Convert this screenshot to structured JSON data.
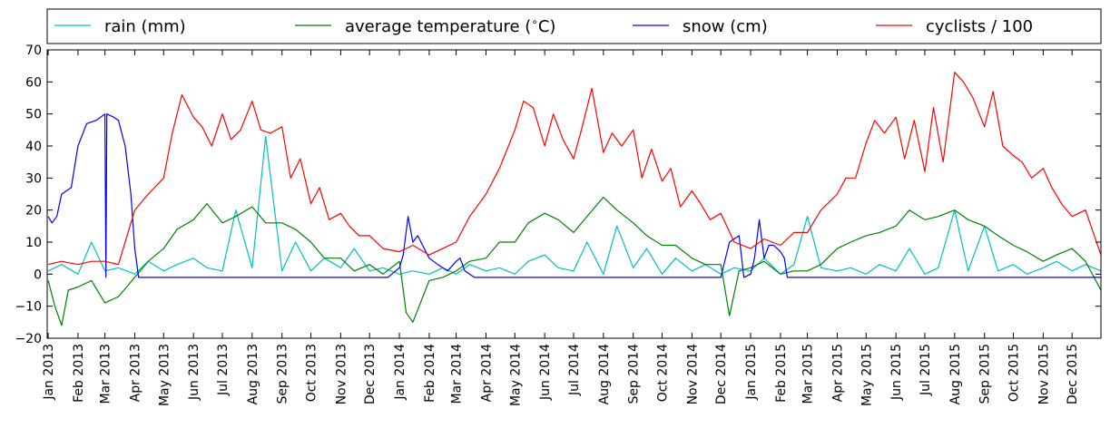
{
  "chart_data": {
    "type": "line",
    "title": "",
    "xlabel": "",
    "ylabel": "",
    "ylim": [
      -20,
      70
    ],
    "yticks": [
      -20,
      -10,
      0,
      10,
      20,
      30,
      40,
      50,
      60,
      70
    ],
    "xlim": [
      "2012-12-31",
      "2015-12-31"
    ],
    "grid": false,
    "legend_location": "top, above plot, single row",
    "x_tick_labels": [
      "Jan 2013",
      "Feb 2013",
      "Mar 2013",
      "Apr 2013",
      "May 2013",
      "Jun 2013",
      "Jul 2013",
      "Aug 2013",
      "Sep 2013",
      "Oct 2013",
      "Nov 2013",
      "Dec 2013",
      "Jan 2014",
      "Feb 2014",
      "Mar 2014",
      "Apr 2014",
      "May 2014",
      "Jun 2014",
      "Jul 2014",
      "Aug 2014",
      "Sep 2014",
      "Oct 2014",
      "Nov 2014",
      "Dec 2014",
      "Jan 2015",
      "Feb 2015",
      "Mar 2015",
      "Apr 2015",
      "May 2015",
      "Jun 2015",
      "Jul 2015",
      "Aug 2015",
      "Sep 2015",
      "Oct 2015",
      "Nov 2015",
      "Dec 2015"
    ],
    "x_tick_dates": [
      "2013-01-01",
      "2013-02-01",
      "2013-03-01",
      "2013-04-01",
      "2013-05-01",
      "2013-06-01",
      "2013-07-01",
      "2013-08-01",
      "2013-09-01",
      "2013-10-01",
      "2013-11-01",
      "2013-12-01",
      "2014-01-01",
      "2014-02-01",
      "2014-03-01",
      "2014-04-01",
      "2014-05-01",
      "2014-06-01",
      "2014-07-01",
      "2014-08-01",
      "2014-09-01",
      "2014-10-01",
      "2014-11-01",
      "2014-12-01",
      "2015-01-01",
      "2015-02-01",
      "2015-03-01",
      "2015-04-01",
      "2015-05-01",
      "2015-06-01",
      "2015-07-01",
      "2015-08-01",
      "2015-09-01",
      "2015-10-01",
      "2015-11-01",
      "2015-12-01"
    ],
    "series": [
      {
        "name": "rain (mm)",
        "color": "#00bfbf",
        "x": [
          "2013-01-01",
          "2013-01-15",
          "2013-02-01",
          "2013-02-15",
          "2013-03-01",
          "2013-03-15",
          "2013-04-01",
          "2013-04-15",
          "2013-05-01",
          "2013-05-15",
          "2013-06-01",
          "2013-06-15",
          "2013-07-01",
          "2013-07-15",
          "2013-08-01",
          "2013-08-15",
          "2013-09-01",
          "2013-09-15",
          "2013-10-01",
          "2013-10-15",
          "2013-11-01",
          "2013-11-15",
          "2013-12-01",
          "2013-12-15",
          "2014-01-01",
          "2014-01-15",
          "2014-02-01",
          "2014-02-15",
          "2014-03-01",
          "2014-03-15",
          "2014-04-01",
          "2014-04-15",
          "2014-05-01",
          "2014-05-15",
          "2014-06-01",
          "2014-06-15",
          "2014-07-01",
          "2014-07-15",
          "2014-08-01",
          "2014-08-15",
          "2014-09-01",
          "2014-09-15",
          "2014-10-01",
          "2014-10-15",
          "2014-11-01",
          "2014-11-15",
          "2014-12-01",
          "2014-12-15",
          "2015-01-01",
          "2015-01-15",
          "2015-02-01",
          "2015-02-15",
          "2015-03-01",
          "2015-03-15",
          "2015-04-01",
          "2015-04-15",
          "2015-05-01",
          "2015-05-15",
          "2015-06-01",
          "2015-06-15",
          "2015-07-01",
          "2015-07-15",
          "2015-08-01",
          "2015-08-15",
          "2015-09-01",
          "2015-09-15",
          "2015-10-01",
          "2015-10-15",
          "2015-11-01",
          "2015-11-15",
          "2015-12-01",
          "2015-12-15",
          "2015-12-31"
        ],
        "values": [
          1,
          3,
          0,
          10,
          1,
          2,
          0,
          4,
          1,
          3,
          5,
          2,
          1,
          20,
          2,
          43,
          1,
          10,
          1,
          5,
          2,
          8,
          1,
          2,
          0,
          1,
          0,
          2,
          0,
          3,
          1,
          2,
          0,
          4,
          6,
          2,
          1,
          10,
          0,
          15,
          2,
          8,
          0,
          5,
          1,
          3,
          0,
          2,
          1,
          5,
          0,
          3,
          18,
          2,
          1,
          2,
          0,
          3,
          1,
          8,
          0,
          2,
          20,
          1,
          15,
          1,
          3,
          0,
          2,
          4,
          1,
          3,
          1
        ]
      },
      {
        "name": "average temperature ($^\\circ$C)",
        "color": "#008000",
        "x": [
          "2013-01-01",
          "2013-01-08",
          "2013-01-15",
          "2013-01-22",
          "2013-02-01",
          "2013-02-15",
          "2013-03-01",
          "2013-03-15",
          "2013-04-01",
          "2013-04-15",
          "2013-05-01",
          "2013-05-15",
          "2013-06-01",
          "2013-06-15",
          "2013-07-01",
          "2013-07-15",
          "2013-08-01",
          "2013-08-15",
          "2013-09-01",
          "2013-09-15",
          "2013-10-01",
          "2013-10-15",
          "2013-11-01",
          "2013-11-15",
          "2013-12-01",
          "2013-12-15",
          "2014-01-01",
          "2014-01-08",
          "2014-01-15",
          "2014-02-01",
          "2014-02-15",
          "2014-03-01",
          "2014-03-15",
          "2014-04-01",
          "2014-04-15",
          "2014-05-01",
          "2014-05-15",
          "2014-06-01",
          "2014-06-15",
          "2014-07-01",
          "2014-07-15",
          "2014-08-01",
          "2014-08-15",
          "2014-09-01",
          "2014-09-15",
          "2014-10-01",
          "2014-10-15",
          "2014-11-01",
          "2014-11-15",
          "2014-12-01",
          "2014-12-10",
          "2014-12-20",
          "2015-01-01",
          "2015-01-15",
          "2015-02-01",
          "2015-02-15",
          "2015-03-01",
          "2015-03-15",
          "2015-04-01",
          "2015-04-15",
          "2015-05-01",
          "2015-05-15",
          "2015-06-01",
          "2015-06-15",
          "2015-07-01",
          "2015-07-15",
          "2015-08-01",
          "2015-08-15",
          "2015-09-01",
          "2015-09-15",
          "2015-10-01",
          "2015-10-15",
          "2015-11-01",
          "2015-11-15",
          "2015-12-01",
          "2015-12-15",
          "2015-12-31"
        ],
        "values": [
          -2,
          -10,
          -16,
          -5,
          -4,
          -2,
          -9,
          -7,
          -1,
          4,
          8,
          14,
          17,
          22,
          16,
          18,
          21,
          16,
          16,
          14,
          10,
          5,
          5,
          1,
          3,
          0,
          4,
          -12,
          -15,
          -2,
          -1,
          1,
          4,
          5,
          10,
          10,
          16,
          19,
          17,
          13,
          18,
          24,
          20,
          16,
          12,
          9,
          9,
          5,
          3,
          3,
          -13,
          1,
          2,
          4,
          0,
          1,
          1,
          3,
          8,
          10,
          12,
          13,
          15,
          20,
          17,
          18,
          20,
          17,
          15,
          12,
          9,
          7,
          4,
          6,
          8,
          4,
          -5
        ]
      },
      {
        "name": "snow (cm)",
        "color": "#0000ff",
        "x": [
          "2013-01-01",
          "2013-01-05",
          "2013-01-10",
          "2013-01-15",
          "2013-01-20",
          "2013-01-25",
          "2013-02-01",
          "2013-02-10",
          "2013-02-20",
          "2013-03-01",
          "2013-03-02",
          "2013-03-03",
          "2013-03-10",
          "2013-03-15",
          "2013-03-22",
          "2013-03-28",
          "2013-04-01",
          "2013-04-05",
          "2013-12-01",
          "2013-12-20",
          "2014-01-01",
          "2014-01-05",
          "2014-01-10",
          "2014-01-15",
          "2014-01-20",
          "2014-02-01",
          "2014-02-10",
          "2014-02-20",
          "2014-03-01",
          "2014-03-05",
          "2014-03-10",
          "2014-03-20",
          "2014-12-01",
          "2014-12-10",
          "2014-12-20",
          "2014-12-25",
          "2015-01-01",
          "2015-01-05",
          "2015-01-10",
          "2015-01-15",
          "2015-01-20",
          "2015-01-25",
          "2015-02-01",
          "2015-02-05",
          "2015-02-08",
          "2015-02-15",
          "2015-12-31"
        ],
        "values": [
          18,
          16,
          18,
          25,
          26,
          27,
          40,
          47,
          48,
          50,
          -1,
          50,
          49,
          48,
          40,
          25,
          8,
          -1,
          -1,
          -1,
          2,
          6,
          18,
          10,
          12,
          5,
          3,
          1,
          4,
          5,
          1,
          -1,
          -1,
          10,
          12,
          -1,
          0,
          5,
          17,
          5,
          9,
          9,
          7,
          5,
          -1,
          -1,
          -1
        ]
      },
      {
        "name": "cyclists / 100",
        "color": "#ff0000",
        "x": [
          "2013-01-01",
          "2013-01-15",
          "2013-02-01",
          "2013-02-15",
          "2013-03-01",
          "2013-03-15",
          "2013-04-01",
          "2013-04-15",
          "2013-05-01",
          "2013-05-10",
          "2013-05-20",
          "2013-06-01",
          "2013-06-10",
          "2013-06-20",
          "2013-07-01",
          "2013-07-10",
          "2013-07-20",
          "2013-08-01",
          "2013-08-10",
          "2013-08-20",
          "2013-09-01",
          "2013-09-10",
          "2013-09-20",
          "2013-10-01",
          "2013-10-10",
          "2013-10-20",
          "2013-11-01",
          "2013-11-10",
          "2013-11-20",
          "2013-12-01",
          "2013-12-15",
          "2014-01-01",
          "2014-01-15",
          "2014-02-01",
          "2014-02-15",
          "2014-03-01",
          "2014-03-15",
          "2014-04-01",
          "2014-04-15",
          "2014-05-01",
          "2014-05-10",
          "2014-05-20",
          "2014-06-01",
          "2014-06-10",
          "2014-06-20",
          "2014-07-01",
          "2014-07-10",
          "2014-07-20",
          "2014-08-01",
          "2014-08-10",
          "2014-08-20",
          "2014-09-01",
          "2014-09-10",
          "2014-09-20",
          "2014-10-01",
          "2014-10-10",
          "2014-10-20",
          "2014-11-01",
          "2014-11-10",
          "2014-11-20",
          "2014-12-01",
          "2014-12-15",
          "2015-01-01",
          "2015-01-15",
          "2015-02-01",
          "2015-02-15",
          "2015-03-01",
          "2015-03-15",
          "2015-04-01",
          "2015-04-10",
          "2015-04-20",
          "2015-05-01",
          "2015-05-10",
          "2015-05-20",
          "2015-06-01",
          "2015-06-10",
          "2015-06-20",
          "2015-07-01",
          "2015-07-10",
          "2015-07-20",
          "2015-08-01",
          "2015-08-10",
          "2015-08-20",
          "2015-09-01",
          "2015-09-10",
          "2015-09-20",
          "2015-10-01",
          "2015-10-10",
          "2015-10-20",
          "2015-11-01",
          "2015-11-10",
          "2015-11-20",
          "2015-12-01",
          "2015-12-15",
          "2015-12-31"
        ],
        "values": [
          3,
          4,
          3,
          4,
          4,
          3,
          20,
          25,
          30,
          44,
          56,
          49,
          46,
          40,
          50,
          42,
          45,
          54,
          45,
          44,
          46,
          30,
          36,
          22,
          27,
          17,
          19,
          15,
          12,
          12,
          8,
          7,
          9,
          6,
          8,
          10,
          18,
          25,
          33,
          45,
          54,
          52,
          40,
          50,
          42,
          36,
          46,
          58,
          38,
          44,
          40,
          45,
          30,
          39,
          29,
          33,
          21,
          26,
          22,
          17,
          19,
          10,
          8,
          11,
          9,
          13,
          13,
          20,
          25,
          30,
          30,
          41,
          48,
          44,
          49,
          36,
          48,
          32,
          52,
          35,
          63,
          60,
          55,
          46,
          57,
          40,
          37,
          35,
          30,
          33,
          27,
          22,
          18,
          20,
          6
        ]
      }
    ]
  }
}
